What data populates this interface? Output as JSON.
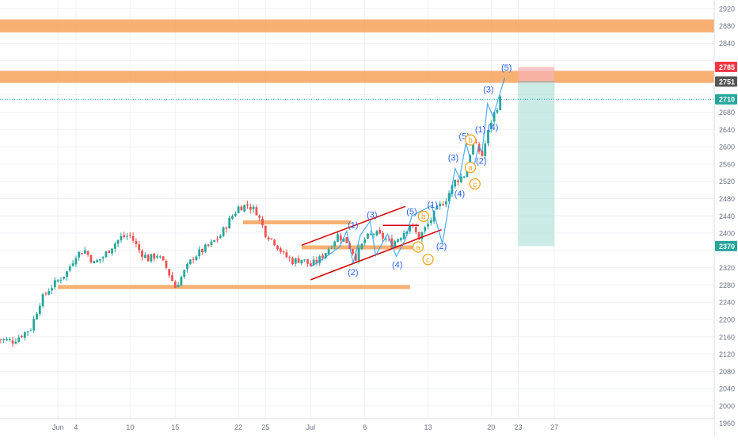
{
  "chart_data": {
    "type": "candlestick",
    "title": "",
    "xlabel": "",
    "ylabel": "",
    "ylim": [
      1930,
      2940
    ],
    "grid": true,
    "x_ticks": [
      {
        "label": "Jun",
        "day": 2
      },
      {
        "label": "4",
        "day": 4
      },
      {
        "label": "10",
        "day": 10
      },
      {
        "label": "15",
        "day": 15
      },
      {
        "label": "22",
        "day": 22
      },
      {
        "label": "25",
        "day": 25
      },
      {
        "label": "Jul",
        "day": 30
      },
      {
        "label": "6",
        "day": 36
      },
      {
        "label": "13",
        "day": 43
      },
      {
        "label": "20",
        "day": 50
      },
      {
        "label": "23",
        "day": 53
      },
      {
        "label": "27",
        "day": 57
      }
    ],
    "y_ticks": [
      "1960",
      "2000",
      "2040",
      "2080",
      "2120",
      "2160",
      "2200",
      "2240",
      "2280",
      "2320",
      "2360",
      "2400",
      "2440",
      "2480",
      "2520",
      "2560",
      "2600",
      "2640",
      "2680",
      "2720",
      "2760",
      "2800",
      "2840",
      "2880",
      "2920"
    ],
    "price_badges": [
      {
        "label": "2785",
        "value": 2785,
        "color": "#f23645"
      },
      {
        "label": "2751",
        "value": 2751,
        "color": "#555555"
      },
      {
        "label": "2710",
        "value": 2710,
        "color": "#26a69a"
      },
      {
        "label": "2370",
        "value": 2370,
        "color": "#26a69a"
      }
    ],
    "current_price": 2710,
    "close_path": [
      [
        -5,
        2155
      ],
      [
        -3,
        2150
      ],
      [
        -1,
        2180
      ],
      [
        0,
        2240
      ],
      [
        1,
        2270
      ],
      [
        2,
        2290
      ],
      [
        3,
        2310
      ],
      [
        4,
        2350
      ],
      [
        5,
        2360
      ],
      [
        6,
        2330
      ],
      [
        7,
        2345
      ],
      [
        8,
        2370
      ],
      [
        9,
        2390
      ],
      [
        10,
        2395
      ],
      [
        11,
        2360
      ],
      [
        12,
        2340
      ],
      [
        13,
        2350
      ],
      [
        14,
        2320
      ],
      [
        15,
        2275
      ],
      [
        16,
        2310
      ],
      [
        17,
        2345
      ],
      [
        18,
        2360
      ],
      [
        19,
        2375
      ],
      [
        20,
        2395
      ],
      [
        21,
        2430
      ],
      [
        22,
        2460
      ],
      [
        23,
        2465
      ],
      [
        24,
        2450
      ],
      [
        25,
        2400
      ],
      [
        26,
        2380
      ],
      [
        27,
        2350
      ],
      [
        28,
        2335
      ],
      [
        29,
        2340
      ],
      [
        30,
        2325
      ],
      [
        31,
        2340
      ],
      [
        32,
        2365
      ],
      [
        33,
        2395
      ],
      [
        34,
        2380
      ],
      [
        35,
        2345
      ],
      [
        36,
        2385
      ],
      [
        37,
        2400
      ],
      [
        38,
        2390
      ],
      [
        39,
        2375
      ],
      [
        40,
        2395
      ],
      [
        41,
        2420
      ],
      [
        42,
        2390
      ],
      [
        43,
        2420
      ],
      [
        44,
        2455
      ],
      [
        45,
        2480
      ],
      [
        46,
        2520
      ],
      [
        47,
        2535
      ],
      [
        48,
        2610
      ],
      [
        49,
        2580
      ],
      [
        50,
        2660
      ],
      [
        51,
        2710
      ]
    ],
    "sr_zones": [
      {
        "y_top": 2895,
        "y_bottom": 2865
      },
      {
        "y_top": 2776,
        "y_bottom": 2748
      }
    ],
    "sr_lines": [
      {
        "x1": 2,
        "x2": 41,
        "y": 2275
      },
      {
        "x1": 22.5,
        "x2": 34.5,
        "y": 2425
      },
      {
        "x1": 29,
        "x2": 42,
        "y": 2367
      }
    ],
    "position": {
      "x1": 53,
      "x2": 57,
      "entry": 2751,
      "stop": 2785,
      "target": 2370
    },
    "channels": [
      {
        "x1": 29,
        "y1": 2372,
        "x2": 40.5,
        "y2": 2462
      },
      {
        "x1": 30,
        "y1": 2292,
        "x2": 44.5,
        "y2": 2408
      },
      {
        "x1": 38,
        "y1": 2418,
        "x2": 42,
        "y2": 2418
      }
    ],
    "wave_labels": [
      {
        "text": "(1)",
        "x": 34.7,
        "y": 2419,
        "color": "#2962ff",
        "circled": false
      },
      {
        "text": "(2)",
        "x": 34.7,
        "y": 2310,
        "color": "#2962ff",
        "circled": false
      },
      {
        "text": "(3)",
        "x": 36.8,
        "y": 2443,
        "color": "#2962ff",
        "circled": false
      },
      {
        "text": "(4)",
        "x": 39.6,
        "y": 2327,
        "color": "#2962ff",
        "circled": false
      },
      {
        "text": "(5)",
        "x": 41.2,
        "y": 2450,
        "color": "#2962ff",
        "circled": false
      },
      {
        "text": "(1)",
        "x": 43.5,
        "y": 2466,
        "color": "#2962ff",
        "circled": false
      },
      {
        "text": "(2)",
        "x": 44.5,
        "y": 2370,
        "color": "#2962ff",
        "circled": false
      },
      {
        "text": "(3)",
        "x": 45.8,
        "y": 2575,
        "color": "#2962ff",
        "circled": false
      },
      {
        "text": "(4)",
        "x": 46.5,
        "y": 2492,
        "color": "#2962ff",
        "circled": false
      },
      {
        "text": "(5)",
        "x": 47.0,
        "y": 2625,
        "color": "#2962ff",
        "circled": false
      },
      {
        "text": "(1)",
        "x": 48.8,
        "y": 2640,
        "color": "#2962ff",
        "circled": false
      },
      {
        "text": "(2)",
        "x": 48.9,
        "y": 2568,
        "color": "#2962ff",
        "circled": false
      },
      {
        "text": "(3)",
        "x": 49.7,
        "y": 2733,
        "color": "#2962ff",
        "circled": false
      },
      {
        "text": "(4)",
        "x": 50.2,
        "y": 2646,
        "color": "#2962ff",
        "circled": false
      },
      {
        "text": "(5)",
        "x": 51.7,
        "y": 2784,
        "color": "#2962ff",
        "circled": false
      },
      {
        "text": "b",
        "x": 42.5,
        "y": 2439,
        "color": "#f5a623",
        "circled": true
      },
      {
        "text": "a",
        "x": 41.9,
        "y": 2368,
        "color": "#f5a623",
        "circled": true
      },
      {
        "text": "c",
        "x": 43.0,
        "y": 2339,
        "color": "#f5a623",
        "circled": true
      },
      {
        "text": "b",
        "x": 47.7,
        "y": 2616,
        "color": "#f5a623",
        "circled": true
      },
      {
        "text": "a",
        "x": 47.7,
        "y": 2552,
        "color": "#f5a623",
        "circled": true
      },
      {
        "text": "c",
        "x": 48.2,
        "y": 2514,
        "color": "#f5a623",
        "circled": true
      }
    ],
    "wave_path": [
      [
        30,
        2322
      ],
      [
        31.5,
        2342
      ],
      [
        33.2,
        2368
      ],
      [
        34,
        2405
      ],
      [
        34.7,
        2330
      ],
      [
        35.5,
        2395
      ],
      [
        36.6,
        2428
      ],
      [
        37.2,
        2348
      ],
      [
        38.5,
        2398
      ],
      [
        39.5,
        2346
      ],
      [
        40.5,
        2385
      ],
      [
        41.2,
        2440
      ],
      [
        43.4,
        2464
      ],
      [
        44.6,
        2376
      ],
      [
        46,
        2550
      ],
      [
        46.5,
        2527
      ],
      [
        47.2,
        2609
      ],
      [
        48,
        2545
      ],
      [
        48.6,
        2600
      ],
      [
        49,
        2590
      ],
      [
        49.6,
        2700
      ],
      [
        50.2,
        2670
      ],
      [
        51.5,
        2760
      ]
    ],
    "colors": {
      "up": "#26a69a",
      "down": "#ef5350",
      "zone": "#f7a25a",
      "channel": "#d50000",
      "wave_path": "#2196f3",
      "stop_fill": "#f7b3b3",
      "target_fill": "#a8ddd6"
    }
  }
}
